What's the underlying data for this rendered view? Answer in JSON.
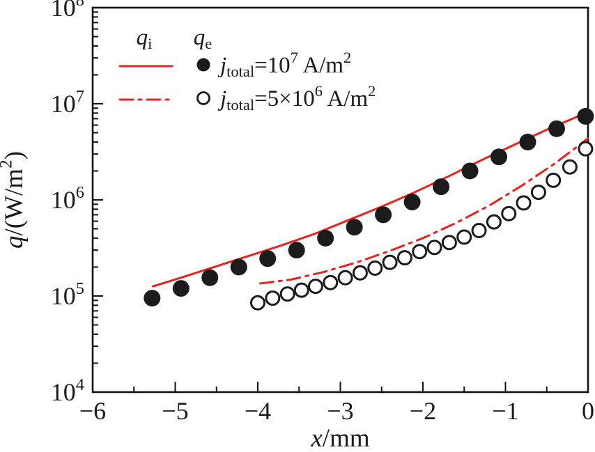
{
  "chart_data": {
    "type": "scatter",
    "title": "",
    "xlabel": "*x*/mm",
    "ylabel": "*q*/(W/m^{2})",
    "x_range": [
      -6,
      0
    ],
    "x_major_ticks": [
      -6,
      -5,
      -4,
      -3,
      -2,
      -1,
      0
    ],
    "x_tick_labels": [
      "−6",
      "−5",
      "−4",
      "−3",
      "−2",
      "−1",
      "0"
    ],
    "x_minor_step": 0.5,
    "y_scale": "log",
    "y_exp_range": [
      4,
      8
    ],
    "y_tick_labels": [
      "10^{4}",
      "10^{5}",
      "10^{6}",
      "10^{7}",
      "10^{8}"
    ],
    "grid": false,
    "legend_position": "top-left-inside",
    "colors": {
      "line_red": "#e8231d",
      "marker_black": "#1b1b1b",
      "frame": "#111111"
    },
    "legend": {
      "col1_header": "*q*_{i}",
      "col2_header": "*q*_{e}",
      "rows": [
        {
          "line": "solid",
          "marker": "filled-circle",
          "label": "*j*_{total}=10^{7} A/m^{2}"
        },
        {
          "line": "dashdot",
          "marker": "open-circle",
          "label": "*j*_{total}=5×10^{6} A/m^{2}"
        }
      ]
    },
    "series": [
      {
        "name": "qi_line_jtotal_1e7",
        "style": "line-solid",
        "x": [
          -5.27,
          -4.9,
          -4.5,
          -4.1,
          -3.7,
          -3.3,
          -2.9,
          -2.5,
          -2.1,
          -1.7,
          -1.3,
          -0.9,
          -0.5,
          -0.2,
          0
        ],
        "y": [
          126000,
          158000,
          204000,
          263000,
          339000,
          447000,
          617000,
          851000,
          1200000,
          1740000,
          2570000,
          3720000,
          5370000,
          6920000,
          8320000
        ]
      },
      {
        "name": "qe_points_jtotal_1e7",
        "style": "marker-filled",
        "x": [
          -5.28,
          -4.93,
          -4.58,
          -4.23,
          -3.88,
          -3.53,
          -3.18,
          -2.83,
          -2.48,
          -2.13,
          -1.78,
          -1.43,
          -1.08,
          -0.73,
          -0.38,
          -0.03
        ],
        "y": [
          95000,
          120000,
          155000,
          200000,
          245000,
          300000,
          400000,
          520000,
          700000,
          950000,
          1370000,
          2000000,
          2800000,
          4000000,
          5500000,
          7400000
        ]
      },
      {
        "name": "qi_line_jtotal_5e6",
        "style": "line-dashdot",
        "x": [
          -3.97,
          -3.6,
          -3.2,
          -2.8,
          -2.4,
          -2.0,
          -1.6,
          -1.2,
          -0.8,
          -0.4,
          0
        ],
        "y": [
          135000,
          148000,
          178000,
          224000,
          295000,
          400000,
          575000,
          870000,
          1410000,
          2400000,
          4370000
        ]
      },
      {
        "name": "qe_points_jtotal_5e6",
        "style": "marker-open",
        "x": [
          -4.0,
          -3.82,
          -3.64,
          -3.47,
          -3.3,
          -3.12,
          -2.94,
          -2.76,
          -2.58,
          -2.4,
          -2.22,
          -2.04,
          -1.86,
          -1.68,
          -1.5,
          -1.32,
          -1.14,
          -0.96,
          -0.78,
          -0.6,
          -0.42,
          -0.22,
          -0.03
        ],
        "y": [
          85000,
          95000,
          105000,
          115000,
          126000,
          138000,
          155000,
          174000,
          195000,
          224000,
          250000,
          290000,
          320000,
          360000,
          410000,
          480000,
          590000,
          720000,
          930000,
          1200000,
          1600000,
          2200000,
          3400000
        ]
      }
    ]
  }
}
